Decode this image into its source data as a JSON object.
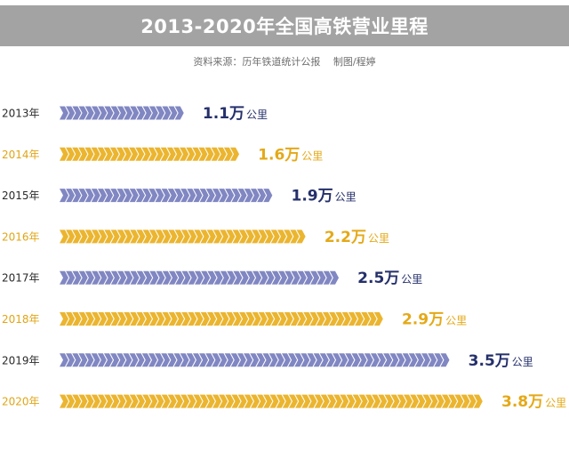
{
  "header": {
    "title": "2013-2020年全国高铁营业里程",
    "source": "资料来源：历年铁道统计公报　 制图/程婷"
  },
  "colors": {
    "title_bg": "#a3a3a3",
    "odd_bar": "#8087c2",
    "even_bar": "#ebb530",
    "odd_text": "#25306b",
    "even_text": "#e4a918",
    "year_odd": "#2a2a2a",
    "year_even": "#e0a516"
  },
  "chart_data": {
    "type": "bar",
    "orientation": "horizontal",
    "title": "2013-2020年全国高铁营业里程",
    "unit": "万公里",
    "unit_label": "公里",
    "value_suffix": "万",
    "categories": [
      "2013年",
      "2014年",
      "2015年",
      "2016年",
      "2017年",
      "2018年",
      "2019年",
      "2020年"
    ],
    "values": [
      1.1,
      1.6,
      1.9,
      2.2,
      2.5,
      2.9,
      3.5,
      3.8
    ],
    "value_labels": [
      "1.1",
      "1.6",
      "1.9",
      "2.2",
      "2.5",
      "2.9",
      "3.5",
      "3.8"
    ],
    "grid": false,
    "legend": "none"
  }
}
